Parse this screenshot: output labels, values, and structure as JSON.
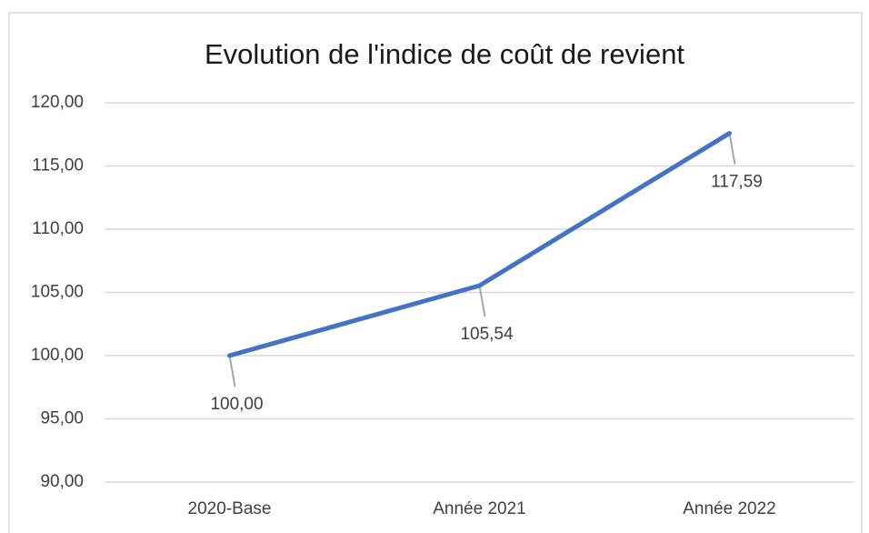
{
  "chart_data": {
    "type": "line",
    "title": "Evolution de l'indice de coût de revient",
    "categories": [
      "2020-Base",
      "Année 2021",
      "Année 2022"
    ],
    "values": [
      100,
      105.54,
      117.59
    ],
    "value_labels": [
      "100,00",
      "105,54",
      "117,59"
    ],
    "color": "#4472c4",
    "ylim": [
      90,
      120
    ],
    "yticks": [
      {
        "value": 90,
        "label": "90,00"
      },
      {
        "value": 95,
        "label": "95,00"
      },
      {
        "value": 100,
        "label": "100,00"
      },
      {
        "value": 105,
        "label": "105,00"
      },
      {
        "value": 110,
        "label": "110,00"
      },
      {
        "value": 115,
        "label": "115,00"
      },
      {
        "value": 120,
        "label": "120,00"
      }
    ],
    "grid": true
  }
}
